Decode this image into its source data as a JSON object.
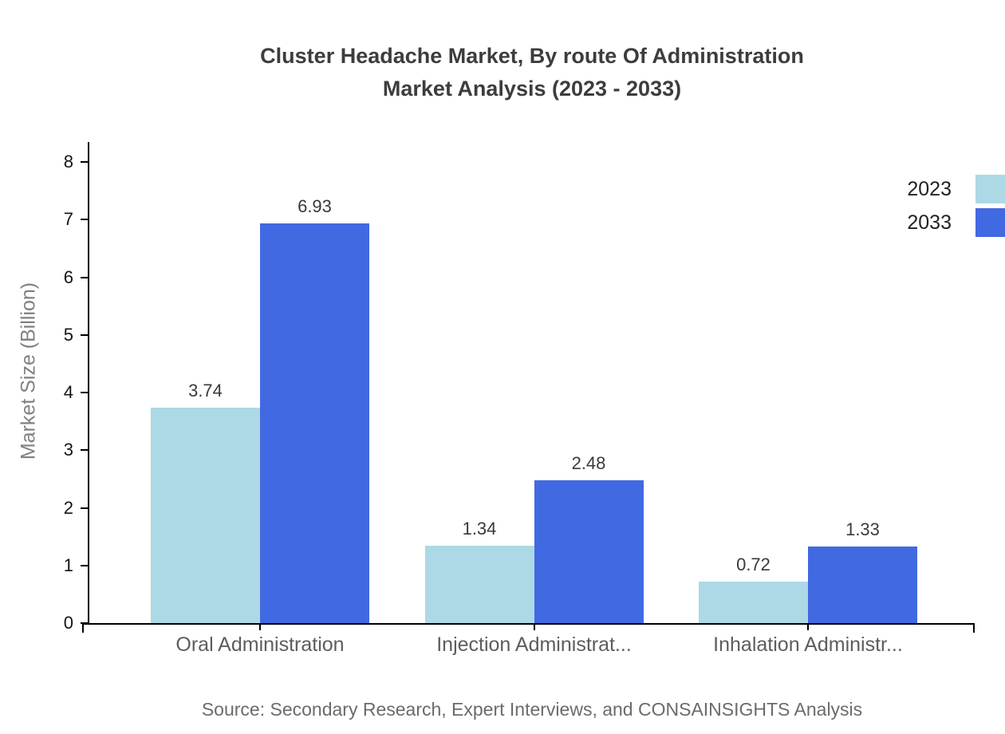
{
  "title": {
    "line1": "Cluster Headache Market, By route Of Administration",
    "line2": "Market Analysis (2023 - 2033)"
  },
  "source": "Source: Secondary Research, Expert Interviews, and CONSAINSIGHTS Analysis",
  "colors": {
    "series_2023": "#ADD8E6",
    "series_2033": "#4169E1",
    "axis": "#000000",
    "title_text": "#3d3d3d",
    "category_text": "#5d5d5d",
    "axis_title_text": "#808080",
    "source_text": "#6b6b6b",
    "background": "#ffffff"
  },
  "chart_data": {
    "type": "bar",
    "title": "Cluster Headache Market, By route Of Administration Market Analysis (2023 - 2033)",
    "categories": [
      "Oral Administration",
      "Injection Administrat...",
      "Inhalation Administr..."
    ],
    "series": [
      {
        "name": "2023",
        "color": "#ADD8E6",
        "values": [
          3.74,
          1.34,
          0.72
        ]
      },
      {
        "name": "2033",
        "color": "#4169E1",
        "values": [
          6.93,
          2.48,
          1.33
        ]
      }
    ],
    "xlabel": "",
    "ylabel": "Market Size (Billion)",
    "ylim": [
      0,
      8
    ],
    "yticks": [
      0,
      1,
      2,
      3,
      4,
      5,
      6,
      7,
      8
    ],
    "value_labels": true,
    "value_label_decimals": 2,
    "grid": false,
    "legend_position": "top-right"
  }
}
